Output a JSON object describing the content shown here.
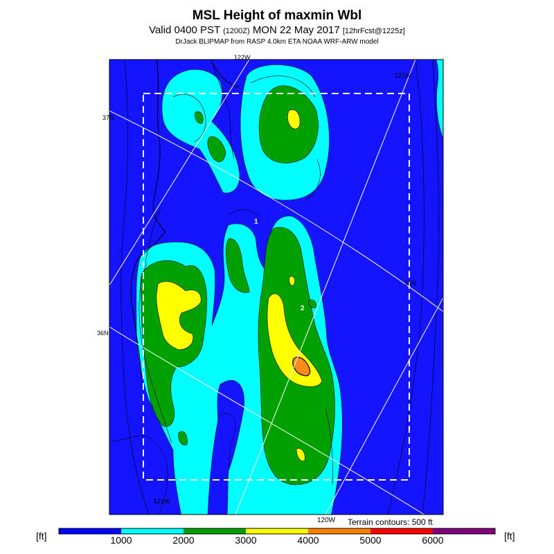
{
  "header": {
    "title": "MSL Height of maxmin Wbl",
    "valid_prefix": "Valid 0400 PST",
    "valid_utc": "(1200Z)",
    "valid_date": "MON 22 May 2017",
    "forecast": "[12hrFcst@1225z]",
    "credit": "DrJack BLIPMAP from RASP 4.0km ETA NOAA WRF-ARW model"
  },
  "map": {
    "lon_labels": [
      "122W",
      "121W",
      "121W",
      "120W"
    ],
    "lat_labels": [
      "37N",
      "36N",
      "36N"
    ],
    "contour_labels": [
      "1",
      "2"
    ],
    "terrain_note": "Terrain contours: 500 ft"
  },
  "legend": {
    "unit_left": "[ft]",
    "unit_right": "[ft]",
    "ticks": [
      "1000",
      "2000",
      "3000",
      "4000",
      "5000",
      "6000"
    ],
    "colors": [
      "#0000ff",
      "#00ffff",
      "#00a000",
      "#ffff00",
      "#ff8000",
      "#ff0000",
      "#800080"
    ]
  },
  "colors": {
    "bin_0_1000": "#1414ff",
    "bin_1000_2000": "#00ffff",
    "bin_2000_3000": "#00a000",
    "bin_3000_4000": "#ffff00",
    "bin_4000_5000": "#ff8c1a"
  }
}
